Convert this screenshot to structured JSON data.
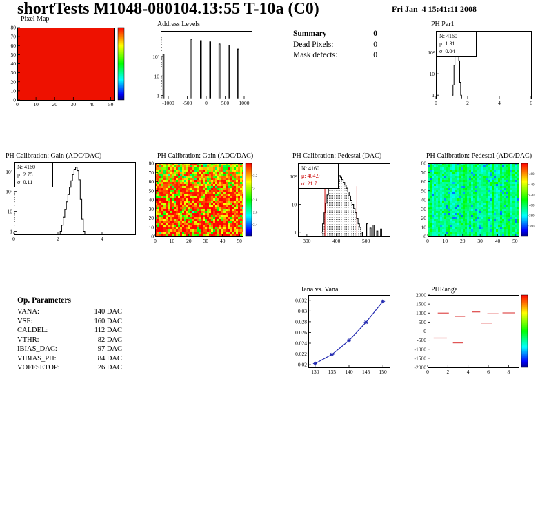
{
  "header": {
    "title": "shortTests M1048-080104.13:55 T-10a (C0)",
    "date": "Fri Jan  4 15:41:11 2008"
  },
  "summary": {
    "title": "Summary",
    "total": "0",
    "rows": [
      {
        "label": "Dead Pixels:",
        "value": "0"
      },
      {
        "label": "Mask defects:",
        "value": "0"
      }
    ]
  },
  "op_parameters": {
    "title": "Op. Parameters",
    "rows": [
      {
        "label": "VANA:",
        "value": "140 DAC"
      },
      {
        "label": "VSF:",
        "value": "160 DAC"
      },
      {
        "label": "CALDEL:",
        "value": "112 DAC"
      },
      {
        "label": "VTHR:",
        "value": "82 DAC"
      },
      {
        "label": "IBIAS_DAC:",
        "value": "97 DAC"
      },
      {
        "label": "VIBIAS_PH:",
        "value": "84 DAC"
      },
      {
        "label": "VOFFSETOP:",
        "value": "26 DAC"
      }
    ]
  },
  "colors": {
    "accent_red": "#cc0000",
    "line_blue": "#2028b0",
    "dash_red": "#e05555",
    "map_red": "#ee1100"
  },
  "chart_data": [
    {
      "id": "pixel-map",
      "type": "heatmap",
      "style": "flat",
      "flat_color": "#ee1100",
      "title": "Pixel Map",
      "xlim": [
        0,
        52
      ],
      "ylim": [
        0,
        80
      ],
      "xticks": [
        0,
        10,
        20,
        30,
        40,
        50
      ],
      "yticks": [
        0,
        10,
        20,
        30,
        40,
        50,
        60,
        70,
        80
      ],
      "colorbar": true,
      "cb_labels": []
    },
    {
      "id": "address-levels",
      "type": "spikes",
      "title": "Address Levels",
      "xlim": [
        -1200,
        1200
      ],
      "ylog": [
        0.7,
        2000
      ],
      "xticks": [
        -1000,
        -500,
        0,
        500,
        1000
      ],
      "yticks": [
        [
          1,
          "1"
        ],
        [
          10,
          "10"
        ],
        [
          100,
          "10²"
        ]
      ],
      "spike_width": 28,
      "peaks": [
        [
          -1140,
          130
        ],
        [
          -400,
          750
        ],
        [
          -155,
          640
        ],
        [
          90,
          560
        ],
        [
          335,
          430
        ],
        [
          580,
          380
        ],
        [
          825,
          240
        ]
      ]
    },
    {
      "id": "ph-par1",
      "type": "steps",
      "title": "PH Par1",
      "stats": [
        "N: 4160",
        "μ: 1.31",
        "σ: 0.04"
      ],
      "xlim": [
        0,
        6
      ],
      "ylog": [
        0.7,
        1000
      ],
      "xticks": [
        0,
        2,
        4,
        6
      ],
      "yticks": [
        [
          1,
          "1"
        ],
        [
          10,
          "10"
        ],
        [
          100,
          "10²"
        ]
      ],
      "binw": 0.06,
      "points": [
        [
          1.02,
          1
        ],
        [
          1.08,
          3
        ],
        [
          1.14,
          25
        ],
        [
          1.2,
          180
        ],
        [
          1.26,
          520
        ],
        [
          1.32,
          600
        ],
        [
          1.38,
          300
        ],
        [
          1.44,
          40
        ],
        [
          1.5,
          4
        ],
        [
          1.56,
          1
        ]
      ]
    },
    {
      "id": "gain-hist",
      "type": "steps",
      "title": "PH Calibration: Gain (ADC/DAC)",
      "stats": [
        "N: 4160",
        "μ: 2.75",
        "σ: 0.11"
      ],
      "xlim": [
        0,
        5.5
      ],
      "ylog": [
        0.7,
        3000
      ],
      "xticks": [
        0,
        2,
        4
      ],
      "yticks": [
        [
          1,
          "1"
        ],
        [
          10,
          "10"
        ],
        [
          100,
          "10²"
        ],
        [
          1000,
          "10³"
        ]
      ],
      "binw": 0.07,
      "points": [
        [
          2.1,
          1
        ],
        [
          2.17,
          2
        ],
        [
          2.24,
          5
        ],
        [
          2.31,
          12
        ],
        [
          2.38,
          30
        ],
        [
          2.45,
          70
        ],
        [
          2.52,
          160
        ],
        [
          2.59,
          340
        ],
        [
          2.66,
          700
        ],
        [
          2.73,
          1300
        ],
        [
          2.8,
          1600
        ],
        [
          2.87,
          1100
        ],
        [
          2.94,
          380
        ],
        [
          3.01,
          40
        ],
        [
          3.08,
          4
        ],
        [
          3.15,
          1
        ]
      ]
    },
    {
      "id": "gain-map",
      "type": "heatmap",
      "style": "hot",
      "seed": 7,
      "title": "PH Calibration: Gain (ADC/DAC)",
      "xlim": [
        0,
        52
      ],
      "ylim": [
        0,
        80
      ],
      "xticks": [
        0,
        10,
        20,
        30,
        40,
        50
      ],
      "yticks": [
        0,
        10,
        20,
        30,
        40,
        50,
        60,
        70,
        80
      ],
      "colorbar": true,
      "cb_labels": [
        "3.2",
        "3",
        "2.8",
        "2.6",
        "2.4"
      ]
    },
    {
      "id": "ped-hist",
      "type": "steps-filled",
      "title": "PH Calibration: Pedestal (DAC)",
      "stats": [
        "N: 4160",
        "μ: 404.9",
        "σ: 21.7"
      ],
      "xlim": [
        270,
        580
      ],
      "ylog": [
        0.7,
        300
      ],
      "xticks": [
        300,
        400,
        500
      ],
      "yticks": [
        [
          1,
          "1"
        ],
        [
          10,
          "10"
        ],
        [
          100,
          "10²"
        ]
      ],
      "binw": 5,
      "points": [
        [
          348,
          1
        ],
        [
          353,
          2
        ],
        [
          358,
          5
        ],
        [
          363,
          11
        ],
        [
          368,
          22
        ],
        [
          373,
          38
        ],
        [
          378,
          60
        ],
        [
          383,
          82
        ],
        [
          388,
          100
        ],
        [
          393,
          115
        ],
        [
          398,
          122
        ],
        [
          403,
          118
        ],
        [
          408,
          108
        ],
        [
          413,
          94
        ],
        [
          418,
          78
        ],
        [
          423,
          62
        ],
        [
          428,
          49
        ],
        [
          433,
          38
        ],
        [
          438,
          28
        ],
        [
          443,
          20
        ],
        [
          448,
          14
        ],
        [
          453,
          10
        ],
        [
          458,
          7
        ],
        [
          463,
          5
        ],
        [
          468,
          3
        ],
        [
          473,
          2
        ],
        [
          478,
          1.5
        ],
        [
          483,
          1
        ]
      ],
      "vlines": [
        361,
        469
      ],
      "vline_top": 45,
      "extra_spikes": [
        [
          502,
          2
        ],
        [
          513,
          1.4
        ],
        [
          524,
          1.8
        ],
        [
          536,
          1.1
        ],
        [
          549,
          1.3
        ]
      ]
    },
    {
      "id": "ped-map",
      "type": "heatmap",
      "style": "cool",
      "seed": 13,
      "title": "PH Calibration: Pedestal (ADC/DAC)",
      "xlim": [
        0,
        52
      ],
      "ylim": [
        0,
        80
      ],
      "xticks": [
        0,
        10,
        20,
        30,
        40,
        50
      ],
      "yticks": [
        0,
        10,
        20,
        30,
        40,
        50,
        60,
        70,
        80
      ],
      "colorbar": true,
      "cb_labels": [
        "460",
        "440",
        "420",
        "400",
        "380",
        "360"
      ]
    },
    {
      "id": "iana",
      "type": "line",
      "color": "#2028b0",
      "title": "Iana vs. Vana",
      "xlim": [
        128,
        152
      ],
      "ylim": [
        0.0195,
        0.033
      ],
      "xticks": [
        130,
        135,
        140,
        145,
        150
      ],
      "yticks": [
        0.02,
        0.022,
        0.024,
        0.026,
        0.028,
        0.03,
        0.032
      ],
      "points": [
        [
          130,
          0.0202
        ],
        [
          135,
          0.0219
        ],
        [
          140,
          0.0245
        ],
        [
          145,
          0.0279
        ],
        [
          150,
          0.0318
        ]
      ]
    },
    {
      "id": "ph-range",
      "type": "dashes",
      "color": "#e05555",
      "title": "PHRange",
      "xlim": [
        0,
        9
      ],
      "ylim": [
        -2000,
        2000
      ],
      "xticks": [
        0,
        2,
        4,
        6,
        8
      ],
      "yticks": [
        2000,
        1500,
        1000,
        500,
        0,
        -500,
        -1000,
        -1500,
        -2000
      ],
      "segments": [
        [
          1.0,
          2.1,
          1000
        ],
        [
          2.7,
          3.7,
          820
        ],
        [
          4.4,
          5.2,
          1060
        ],
        [
          5.9,
          7.0,
          960
        ],
        [
          7.4,
          8.6,
          1010
        ],
        [
          5.3,
          6.4,
          450
        ],
        [
          0.6,
          1.9,
          -380
        ],
        [
          2.5,
          3.5,
          -650
        ]
      ],
      "colorbar": true,
      "cb_labels": []
    }
  ]
}
